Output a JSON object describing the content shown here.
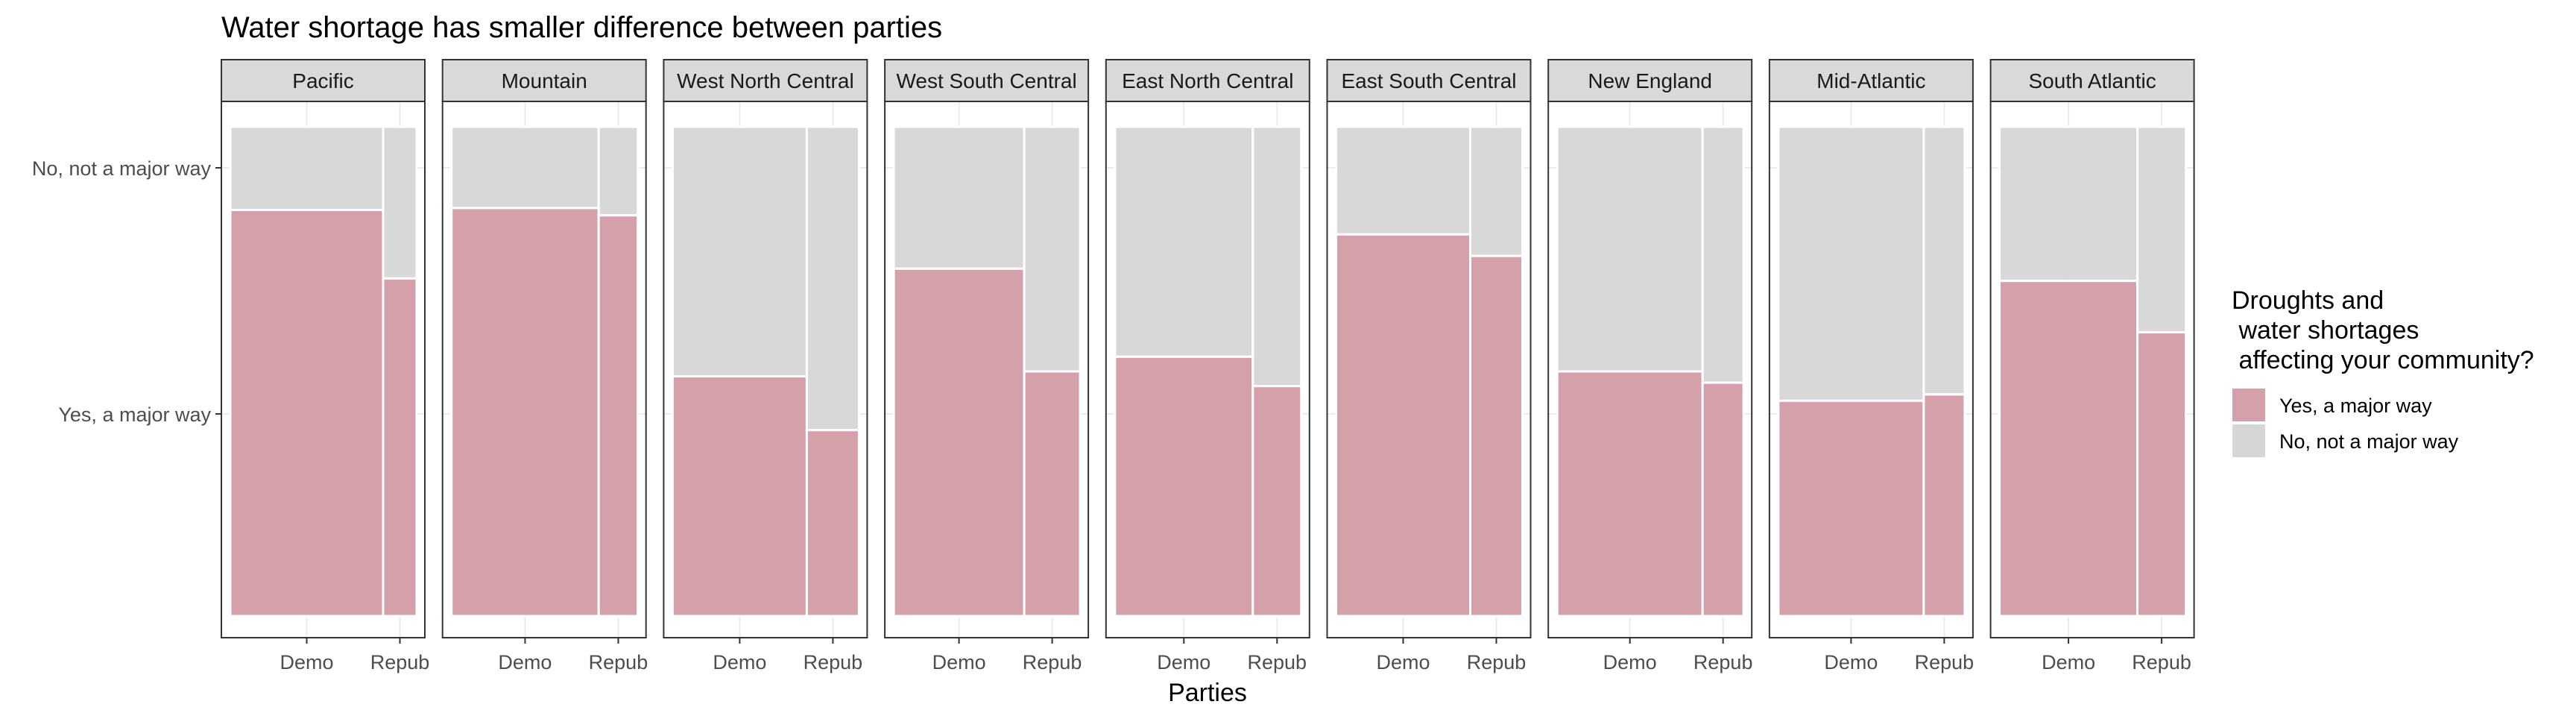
{
  "chart_data": {
    "type": "bar",
    "subtype": "mosaic",
    "title": "Water shortage has smaller difference between parties",
    "xlabel": "Parties",
    "ylabel": "",
    "y_categories": [
      "No, not a major way",
      "Yes, a major way"
    ],
    "x_categories": [
      "Demo",
      "Repub"
    ],
    "legend": {
      "title_lines": [
        "Droughts and",
        " water shortages",
        " affecting your community?"
      ],
      "placement": "right",
      "items": [
        {
          "label": "Yes, a major way",
          "color": "#d4a1aa"
        },
        {
          "label": "No, not a major way",
          "color": "#d6d6d6"
        }
      ]
    },
    "colors": {
      "yes": "#d4a1aa",
      "no": "#d6d6d6",
      "strip_bg": "#d9d9d9",
      "grid": "#ebebeb"
    },
    "grid": true,
    "facets": [
      {
        "name": "Pacific",
        "demo_share": 0.82,
        "yes": {
          "Demo": 0.83,
          "Repub": 0.69
        }
      },
      {
        "name": "Mountain",
        "demo_share": 0.79,
        "yes": {
          "Demo": 0.834,
          "Repub": 0.819
        }
      },
      {
        "name": "West North Central",
        "demo_share": 0.72,
        "yes": {
          "Demo": 0.49,
          "Repub": 0.38
        }
      },
      {
        "name": "West South Central",
        "demo_share": 0.7,
        "yes": {
          "Demo": 0.71,
          "Repub": 0.5
        }
      },
      {
        "name": "East North Central",
        "demo_share": 0.74,
        "yes": {
          "Demo": 0.53,
          "Repub": 0.47
        }
      },
      {
        "name": "East South Central",
        "demo_share": 0.72,
        "yes": {
          "Demo": 0.78,
          "Repub": 0.736
        }
      },
      {
        "name": "New England",
        "demo_share": 0.78,
        "yes": {
          "Demo": 0.5,
          "Repub": 0.477
        }
      },
      {
        "name": "Mid-Atlantic",
        "demo_share": 0.78,
        "yes": {
          "Demo": 0.44,
          "Repub": 0.453
        }
      },
      {
        "name": "South Atlantic",
        "demo_share": 0.74,
        "yes": {
          "Demo": 0.685,
          "Repub": 0.58
        }
      }
    ]
  }
}
